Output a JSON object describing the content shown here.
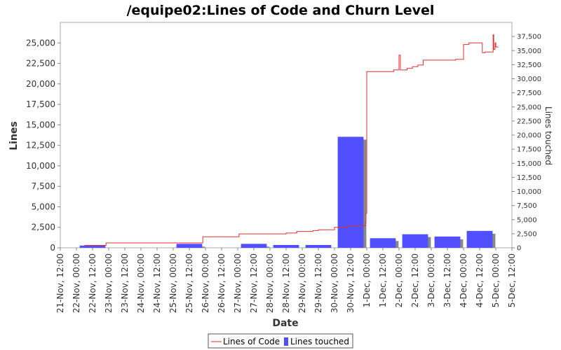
{
  "chart_data": {
    "type": "bar+line",
    "title": "/equipe02:Lines of Code and Churn Level",
    "xlabel": "Date",
    "ylabel_left": "Lines",
    "ylabel_right": "Lines touched",
    "ylim_left": [
      0,
      27500
    ],
    "ylim_right": [
      0,
      40000
    ],
    "left_ticks": [
      "0",
      "2,500",
      "5,000",
      "7,500",
      "10,000",
      "12,500",
      "15,000",
      "17,500",
      "20,000",
      "22,500",
      "25,000"
    ],
    "left_tick_values": [
      0,
      2500,
      5000,
      7500,
      10000,
      12500,
      15000,
      17500,
      20000,
      22500,
      25000
    ],
    "right_ticks": [
      "0",
      "2,500",
      "5,000",
      "7,500",
      "10,000",
      "12,500",
      "15,000",
      "17,500",
      "20,000",
      "22,500",
      "25,000",
      "27,500",
      "30,000",
      "32,500",
      "35,000",
      "37,500"
    ],
    "right_tick_values": [
      0,
      2500,
      5000,
      7500,
      10000,
      12500,
      15000,
      17500,
      20000,
      22500,
      25000,
      27500,
      30000,
      32500,
      35000,
      37500
    ],
    "x_ticks": [
      "21-Nov, 12:00",
      "22-Nov, 00:00",
      "22-Nov, 12:00",
      "23-Nov, 00:00",
      "23-Nov, 12:00",
      "24-Nov, 00:00",
      "24-Nov, 12:00",
      "25-Nov, 00:00",
      "25-Nov, 12:00",
      "26-Nov, 00:00",
      "26-Nov, 12:00",
      "27-Nov, 00:00",
      "27-Nov, 12:00",
      "28-Nov, 00:00",
      "28-Nov, 12:00",
      "29-Nov, 00:00",
      "29-Nov, 12:00",
      "30-Nov, 00:00",
      "30-Nov, 12:00",
      "1-Dec, 00:00",
      "1-Dec, 12:00",
      "2-Dec, 00:00",
      "2-Dec, 12:00",
      "3-Dec, 00:00",
      "3-Dec, 12:00",
      "4-Dec, 00:00",
      "4-Dec, 12:00",
      "5-Dec, 00:00",
      "5-Dec, 12:00"
    ],
    "x_range": [
      "21-Nov, 12:00",
      "5-Dec, 12:00"
    ],
    "series": [
      {
        "name": "Lines of Code",
        "axis": "left",
        "color": "#e03030",
        "points": [
          [
            "22-Nov, 06:00",
            300
          ],
          [
            "22-Nov, 22:00",
            300
          ],
          [
            "22-Nov, 22:00",
            600
          ],
          [
            "25-Nov, 22:00",
            600
          ],
          [
            "25-Nov, 22:00",
            1350
          ],
          [
            "27-Nov, 01:00",
            1350
          ],
          [
            "27-Nov, 01:00",
            1700
          ],
          [
            "28-Nov, 12:00",
            1700
          ],
          [
            "28-Nov, 12:00",
            1800
          ],
          [
            "28-Nov, 20:00",
            1800
          ],
          [
            "28-Nov, 20:00",
            2000
          ],
          [
            "29-Nov, 08:00",
            2000
          ],
          [
            "29-Nov, 08:00",
            2100
          ],
          [
            "29-Nov, 12:00",
            2100
          ],
          [
            "29-Nov, 12:00",
            2200
          ],
          [
            "30-Nov, 00:00",
            2200
          ],
          [
            "30-Nov, 00:00",
            2500
          ],
          [
            "30-Nov, 09:00",
            2500
          ],
          [
            "30-Nov, 09:00",
            2700
          ],
          [
            "30-Nov, 23:00",
            2700
          ],
          [
            "30-Nov, 23:00",
            3100
          ],
          [
            "30-Nov, 23:30",
            3100
          ],
          [
            "30-Nov, 23:30",
            4200
          ],
          [
            "1-Dec, 00:00",
            4200
          ],
          [
            "1-Dec, 00:00",
            21500
          ],
          [
            "1-Dec, 20:00",
            21500
          ],
          [
            "1-Dec, 20:00",
            21700
          ],
          [
            "2-Dec, 00:00",
            21700
          ],
          [
            "2-Dec, 00:00",
            23500
          ],
          [
            "2-Dec, 01:00",
            23500
          ],
          [
            "2-Dec, 01:00",
            21700
          ],
          [
            "2-Dec, 06:00",
            21700
          ],
          [
            "2-Dec, 06:00",
            21900
          ],
          [
            "2-Dec, 10:00",
            21900
          ],
          [
            "2-Dec, 10:00",
            22100
          ],
          [
            "2-Dec, 14:00",
            22100
          ],
          [
            "2-Dec, 14:00",
            22300
          ],
          [
            "2-Dec, 18:00",
            22300
          ],
          [
            "2-Dec, 18:00",
            22900
          ],
          [
            "3-Dec, 18:00",
            22900
          ],
          [
            "3-Dec, 18:00",
            23000
          ],
          [
            "4-Dec, 00:00",
            23000
          ],
          [
            "4-Dec, 00:00",
            24800
          ],
          [
            "4-Dec, 04:00",
            24800
          ],
          [
            "4-Dec, 04:00",
            25000
          ],
          [
            "4-Dec, 14:00",
            25000
          ],
          [
            "4-Dec, 14:00",
            23800
          ],
          [
            "4-Dec, 16:00",
            23800
          ],
          [
            "4-Dec, 16:00",
            23900
          ],
          [
            "4-Dec, 22:00",
            23900
          ],
          [
            "4-Dec, 22:00",
            26000
          ],
          [
            "4-Dec, 22:30",
            26000
          ],
          [
            "4-Dec, 22:30",
            24200
          ],
          [
            "4-Dec, 23:30",
            24200
          ],
          [
            "4-Dec, 23:30",
            25000
          ],
          [
            "5-Dec, 00:00",
            25000
          ],
          [
            "5-Dec, 00:00",
            24500
          ],
          [
            "5-Dec, 02:00",
            24500
          ]
        ]
      },
      {
        "name": "Lines touched",
        "axis": "right",
        "color": "#5050ff",
        "shadow_color": "#888888",
        "bars": [
          {
            "date": "22-Nov",
            "value": 400
          },
          {
            "date": "25-Nov",
            "value": 700
          },
          {
            "date": "27-Nov",
            "value": 700
          },
          {
            "date": "28-Nov",
            "value": 500
          },
          {
            "date": "29-Nov",
            "value": 500
          },
          {
            "date": "30-Nov",
            "value": 19700
          },
          {
            "date": "1-Dec",
            "value": 1700
          },
          {
            "date": "2-Dec",
            "value": 2400
          },
          {
            "date": "3-Dec",
            "value": 2000
          },
          {
            "date": "4-Dec",
            "value": 3000
          }
        ]
      }
    ],
    "legend": [
      "Lines of Code",
      "Lines touched"
    ],
    "legend_position": "bottom"
  }
}
